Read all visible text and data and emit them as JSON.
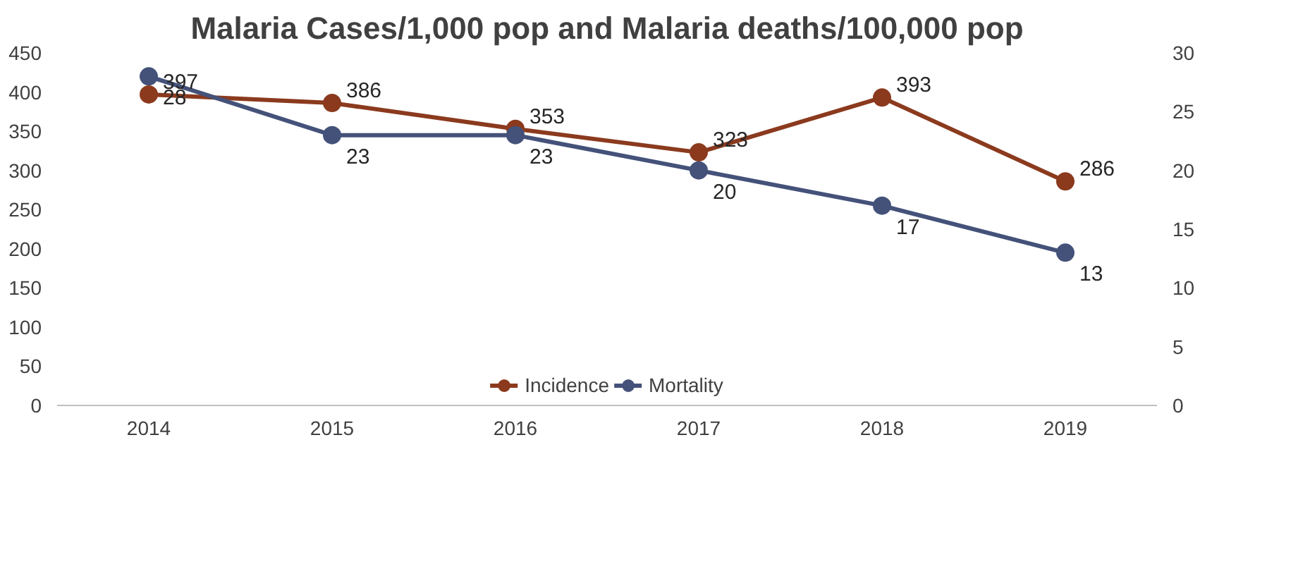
{
  "chart_data": {
    "type": "line",
    "title": "Malaria Cases/1,000 pop and Malaria deaths/100,000 pop",
    "categories": [
      "2014",
      "2015",
      "2016",
      "2017",
      "2018",
      "2019"
    ],
    "series": [
      {
        "name": "Incidence",
        "color": "#8b3a1e",
        "values": [
          397,
          386,
          353,
          323,
          393,
          286
        ]
      },
      {
        "name": "Mortality",
        "color": "#44527a",
        "values": [
          28,
          23,
          23,
          20,
          17,
          13
        ],
        "axis": "y2"
      }
    ],
    "ylim": [
      0,
      450
    ],
    "yticks": [
      0,
      50,
      100,
      150,
      200,
      250,
      300,
      350,
      400,
      450
    ],
    "y2lim": [
      0,
      30
    ],
    "y2ticks": [
      0,
      5,
      10,
      15,
      20,
      25,
      30
    ],
    "data_labels": true,
    "legend": "bottom",
    "grid": false,
    "marker": "circle",
    "line_style": "solid"
  }
}
